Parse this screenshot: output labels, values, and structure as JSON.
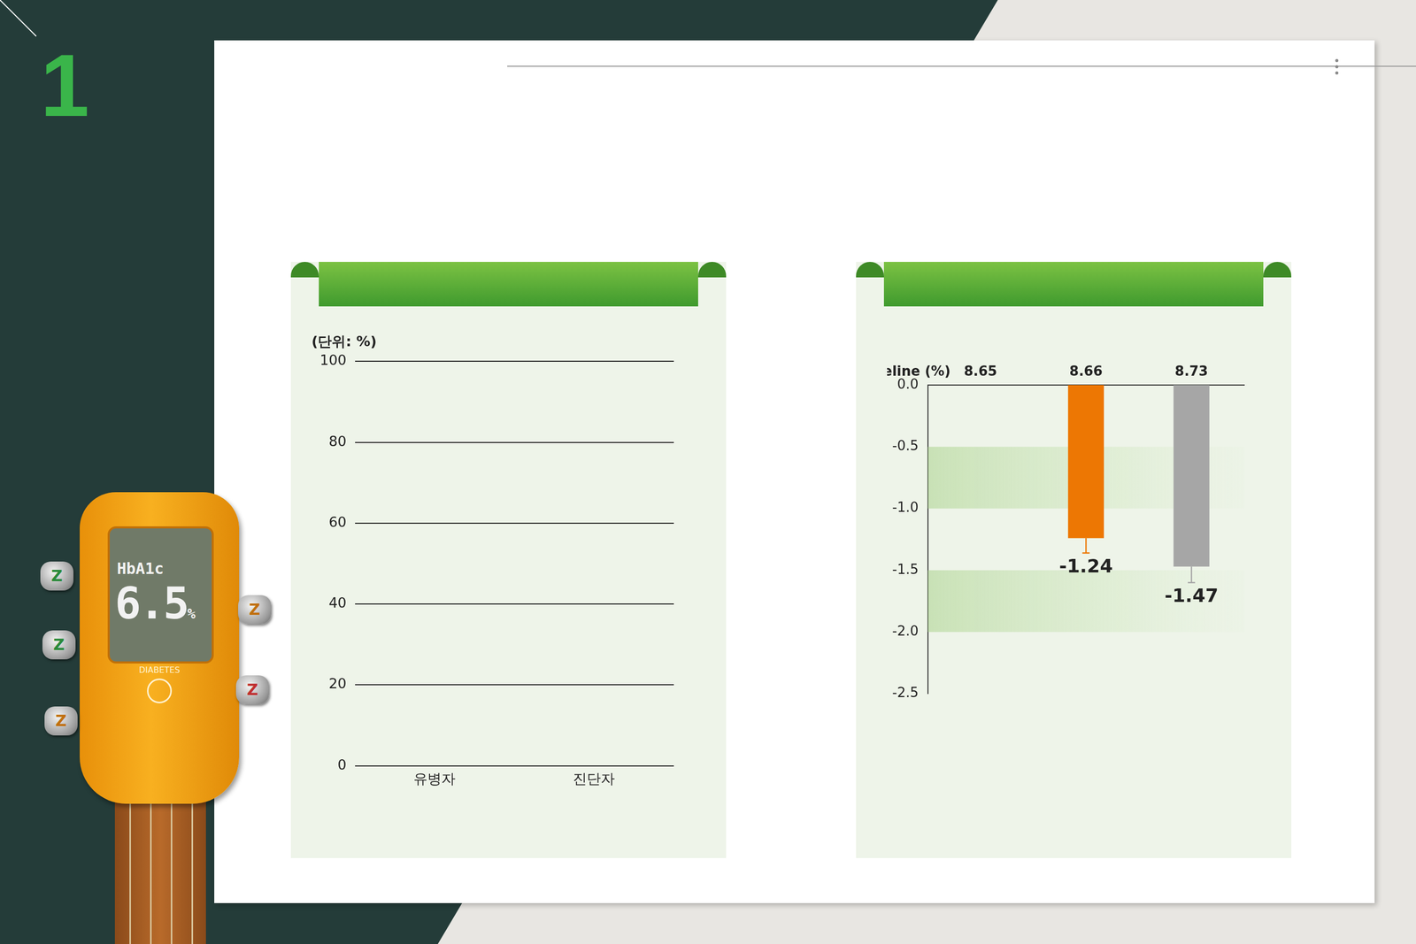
{
  "page": {
    "number": "1",
    "device": {
      "reading_label": "HbA1c",
      "reading": 6.5,
      "unit": "%",
      "brand": "DIABETES",
      "peg_label": "Z"
    }
  },
  "chart_data": [
    {
      "type": "bar",
      "title": "(단위: %)",
      "categories": [
        "유병자",
        "진단자"
      ],
      "values": [
        null,
        null
      ],
      "ylim": [
        0,
        100
      ],
      "yticks": [
        0,
        20,
        40,
        60,
        80,
        100
      ],
      "grid": true
    },
    {
      "type": "bar",
      "categories": [
        null,
        null,
        null
      ],
      "baseline_label": "Baseline (%)",
      "baseline": [
        8.65,
        8.66,
        8.73
      ],
      "values": [
        null,
        -1.24,
        -1.47
      ],
      "error": [
        null,
        0.12,
        0.13
      ],
      "colors": [
        "#f0a050",
        "#ed7703",
        "#a6a6a6"
      ],
      "data_labels": true,
      "grid": false,
      "ylim": [
        -2.5,
        0
      ],
      "yticks": [
        {
          "value": 0,
          "label": "0.0"
        },
        -0.5,
        {
          "value": -1,
          "label": "-1.0"
        },
        -1.5,
        {
          "value": -2,
          "label": "-2.0"
        },
        -2.5
      ]
    }
  ]
}
